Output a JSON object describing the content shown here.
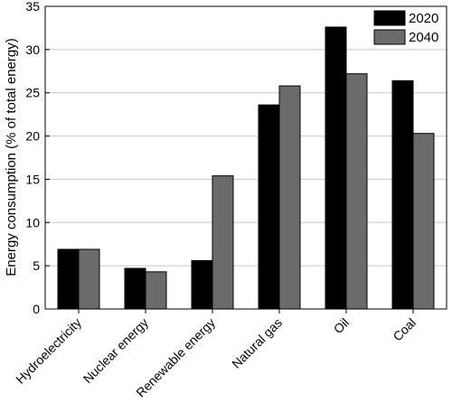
{
  "chart_data": {
    "type": "bar",
    "title": "",
    "xlabel": "",
    "ylabel": "Energy consumption (% of total energy)",
    "ylim": [
      0,
      35
    ],
    "yticks": [
      0,
      5,
      10,
      15,
      20,
      25,
      30,
      35
    ],
    "grid": "horizontal",
    "legend_position": "top-right",
    "categories": [
      "Hydroelectricity",
      "Nuclear energy",
      "Renewable energy",
      "Natural gas",
      "Oil",
      "Coal"
    ],
    "series": [
      {
        "name": "2020",
        "color": "#000000",
        "values": [
          6.9,
          4.7,
          5.6,
          23.6,
          32.6,
          26.4
        ]
      },
      {
        "name": "2040",
        "color": "#6b6b6b",
        "values": [
          6.9,
          4.3,
          15.4,
          25.8,
          27.2,
          20.3
        ]
      }
    ]
  }
}
